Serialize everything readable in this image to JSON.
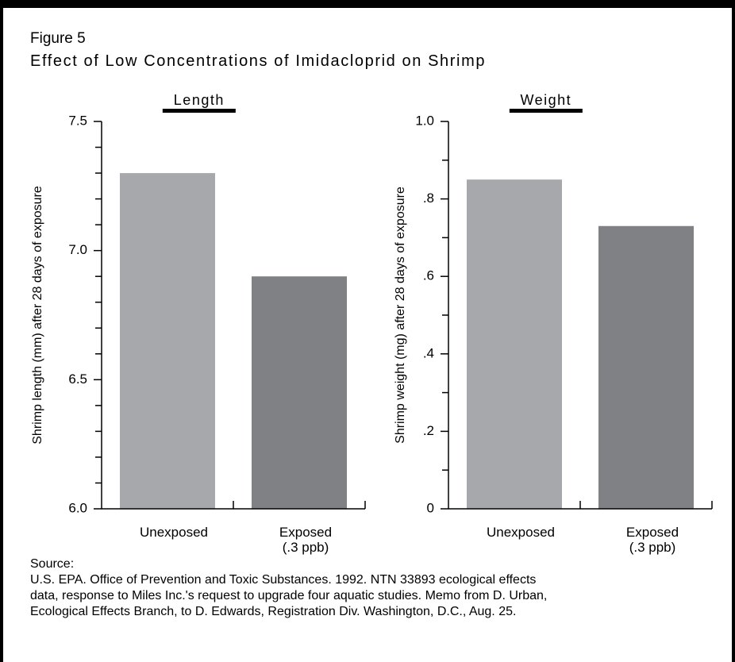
{
  "figure_label": "Figure 5",
  "title": "Effect of Low Concentrations of Imidacloprid on Shrimp",
  "chart_data": [
    {
      "type": "bar",
      "subtitle": "Length",
      "ylabel": "Shrimp length (mm) after 28 days of exposure",
      "categories": [
        "Unexposed",
        "Exposed\n(.3 ppb)"
      ],
      "values": [
        7.3,
        6.9
      ],
      "colors": [
        "#a7a8ab",
        "#808184"
      ],
      "ylim": [
        6.0,
        7.5
      ],
      "yticks": [
        {
          "value": 6.0,
          "label": "6.0"
        },
        6.5,
        {
          "value": 7.0,
          "label": "7.0"
        },
        7.5
      ],
      "yticks_minor": [
        6.1,
        6.2,
        6.3,
        6.4,
        6.6,
        6.7,
        6.8,
        6.9,
        7.1,
        7.2,
        7.3,
        7.4
      ],
      "grid": false
    },
    {
      "type": "bar",
      "subtitle": "Weight",
      "ylabel": "Shrimp weight (mg) after 28 days of exposure",
      "categories": [
        "Unexposed",
        "Exposed\n(.3 ppb)"
      ],
      "values": [
        0.85,
        0.73
      ],
      "colors": [
        "#a7a8ab",
        "#808184"
      ],
      "ylim": [
        0,
        1.0
      ],
      "yticks": [
        0,
        {
          "value": 0.2,
          "label": ".2"
        },
        {
          "value": 0.4,
          "label": ".4"
        },
        {
          "value": 0.6,
          "label": ".6"
        },
        {
          "value": 0.8,
          "label": ".8"
        },
        {
          "value": 1.0,
          "label": "1.0"
        }
      ],
      "yticks_minor": [
        0.1,
        0.3,
        0.5,
        0.7,
        0.9
      ],
      "grid": false
    }
  ],
  "source_label": "Source:",
  "source_lines": [
    "U.S. EPA. Office of Prevention and Toxic Substances. 1992. NTN 33893 ecological effects",
    "data, response to Miles Inc.'s request to upgrade four aquatic studies. Memo from D. Urban,",
    "Ecological Effects Branch, to D. Edwards, Registration Div. Washington, D.C., Aug. 25."
  ]
}
